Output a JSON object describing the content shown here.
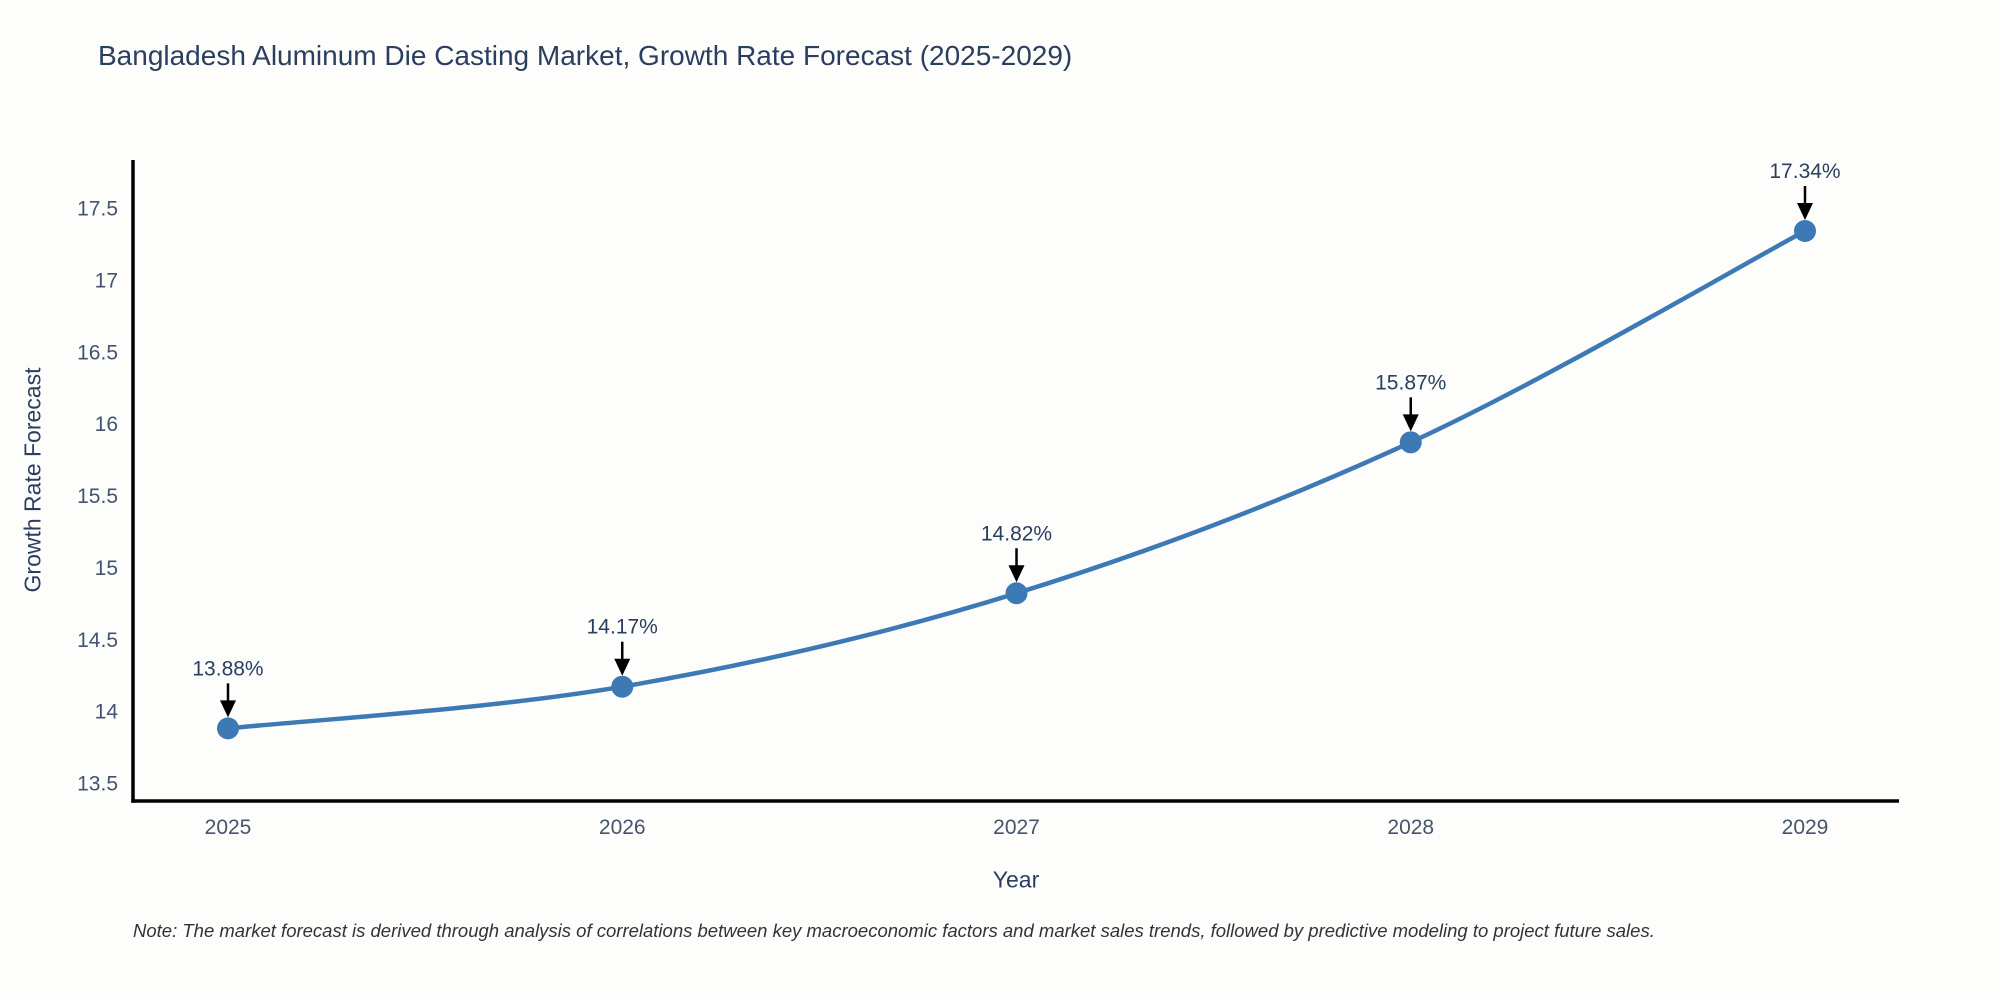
{
  "chart_data": {
    "type": "line",
    "title": "Bangladesh Aluminum Die Casting Market, Growth Rate Forecast (2025-2029)",
    "xlabel": "Year",
    "ylabel": "Growth Rate Forecast",
    "categories": [
      "2025",
      "2026",
      "2027",
      "2028",
      "2029"
    ],
    "series": [
      {
        "name": "Growth Rate Forecast",
        "values": [
          13.88,
          14.17,
          14.82,
          15.87,
          17.34
        ],
        "point_labels": [
          "13.88%",
          "14.17%",
          "14.82%",
          "15.87%",
          "17.34%"
        ]
      }
    ],
    "ylim": [
      13.5,
      17.5
    ],
    "yticks": [
      13.5,
      14,
      14.5,
      15,
      15.5,
      16,
      16.5,
      17,
      17.5
    ],
    "ytick_labels": [
      "13.5",
      "14",
      "14.5",
      "15",
      "15.5",
      "16",
      "16.5",
      "17",
      "17.5"
    ],
    "grid": false,
    "legend_position": "none",
    "line_shape": "spline",
    "marker": "circle",
    "annotation_style": "value-label-with-down-arrow",
    "note": "Note: The market forecast is derived through analysis of correlations between key macroeconomic factors and market sales trends, followed by predictive modeling to project future sales.",
    "colors": {
      "line": "#3d79b4",
      "marker": "#3d79b4",
      "axis": "#000000",
      "title_text": "#2a3f5f",
      "tick_text": "#44546d",
      "annotation_text": "#2a3f5f",
      "arrow": "#000000",
      "note_text": "#333333",
      "background": "#fdfdfc"
    }
  }
}
